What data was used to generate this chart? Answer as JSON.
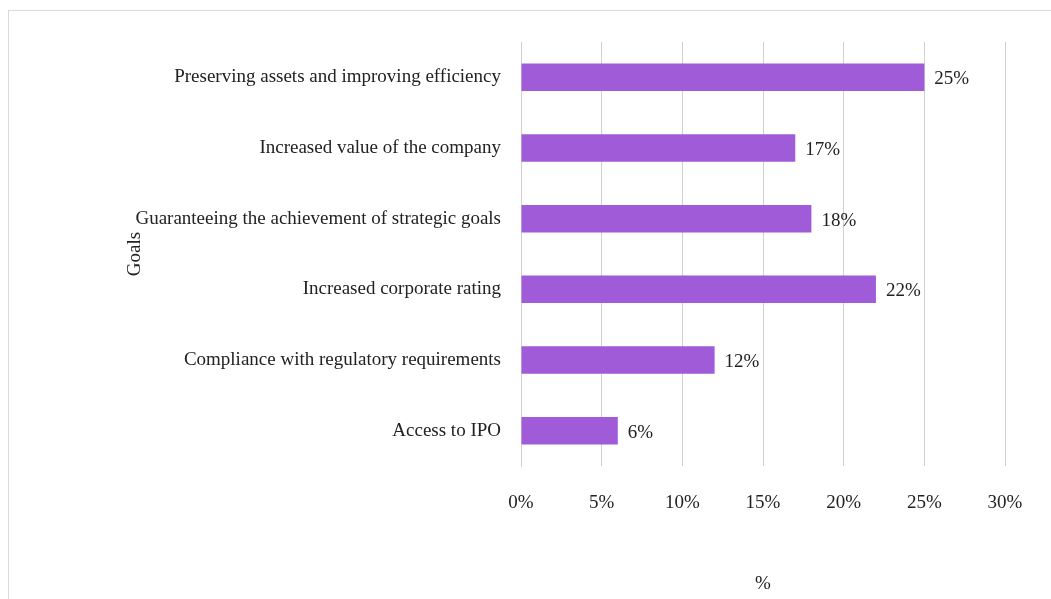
{
  "chart_data": {
    "type": "bar",
    "orientation": "horizontal",
    "ylabel": "Goals",
    "xlabel": "%",
    "categories": [
      "Preserving assets and improving efficiency",
      "Increased value of the company",
      "Guaranteeing the achievement of strategic goals",
      "Increased corporate rating",
      "Compliance with regulatory requirements",
      "Access to IPO"
    ],
    "values": [
      25,
      17,
      18,
      22,
      12,
      6
    ],
    "value_labels": [
      "25%",
      "17%",
      "18%",
      "22%",
      "12%",
      "6%"
    ],
    "color": "#a05bd9",
    "xlim": [
      0,
      30
    ],
    "xticks": [
      {
        "value": 0,
        "label": "0%"
      },
      {
        "value": 5,
        "label": "5%"
      },
      {
        "value": 10,
        "label": "10%"
      },
      {
        "value": 15,
        "label": "15%"
      },
      {
        "value": 20,
        "label": "20%"
      },
      {
        "value": 25,
        "label": "25%"
      },
      {
        "value": 30,
        "label": "30%"
      }
    ],
    "grid": "x",
    "legend": false
  }
}
